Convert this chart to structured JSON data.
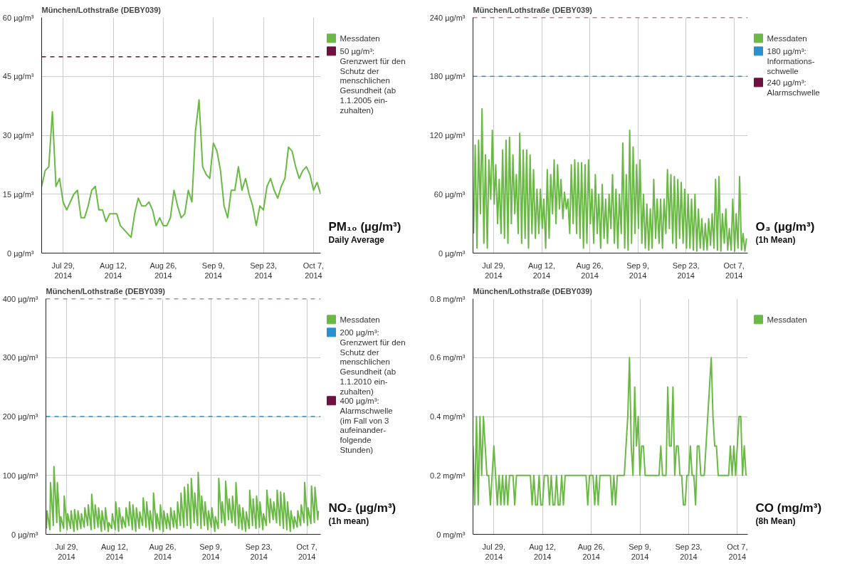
{
  "chart_data": [
    {
      "type": "line",
      "title": "München/Lothstraße (DEBY039)",
      "grid": true,
      "legend": "right",
      "line_style": "solid",
      "annotations": [
        "PM₁₀ (µg/m³)",
        "Daily Average"
      ],
      "xlim": [
        "2014-07-23",
        "2014-10-09"
      ],
      "xticks": [
        {
          "value": "2014-07-29",
          "label": "Jul 29,\n2014"
        },
        {
          "value": "2014-08-12",
          "label": "Aug 12,\n2014"
        },
        {
          "value": "2014-08-26",
          "label": "Aug 26,\n2014"
        },
        {
          "value": "2014-09-09",
          "label": "Sep 9,\n2014"
        },
        {
          "value": "2014-09-23",
          "label": "Sep 23,\n2014"
        },
        {
          "value": "2014-10-07",
          "label": "Oct 7,\n2014"
        }
      ],
      "ylim": [
        0,
        60
      ],
      "yticks": [
        {
          "value": 0,
          "label": "0 µg/m³"
        },
        {
          "value": 15,
          "label": "15 µg/m³"
        },
        {
          "value": 30,
          "label": "30 µg/m³"
        },
        {
          "value": 45,
          "label": "45 µg/m³"
        },
        {
          "value": 60,
          "label": "60 µg/m³"
        }
      ],
      "ref_lines": [
        {
          "axis": "y",
          "value": 50,
          "label": "50 µg/m³:\nGrenzwert für den\nSchutz der\nmenschlichen\nGesundheit (ab\n1.1.2005 ein-\nzuhalten)",
          "color": "#6e1040",
          "line_style": "dashed"
        }
      ],
      "x": [
        "2014-07-23",
        "2014-07-24",
        "2014-07-25",
        "2014-07-26",
        "2014-07-27",
        "2014-07-28",
        "2014-07-29",
        "2014-07-30",
        "2014-07-31",
        "2014-08-01",
        "2014-08-02",
        "2014-08-03",
        "2014-08-04",
        "2014-08-05",
        "2014-08-06",
        "2014-08-07",
        "2014-08-08",
        "2014-08-09",
        "2014-08-10",
        "2014-08-11",
        "2014-08-12",
        "2014-08-13",
        "2014-08-14",
        "2014-08-15",
        "2014-08-16",
        "2014-08-17",
        "2014-08-18",
        "2014-08-19",
        "2014-08-20",
        "2014-08-21",
        "2014-08-22",
        "2014-08-23",
        "2014-08-24",
        "2014-08-25",
        "2014-08-26",
        "2014-08-27",
        "2014-08-28",
        "2014-08-29",
        "2014-08-30",
        "2014-08-31",
        "2014-09-01",
        "2014-09-02",
        "2014-09-03",
        "2014-09-04",
        "2014-09-05",
        "2014-09-06",
        "2014-09-07",
        "2014-09-08",
        "2014-09-09",
        "2014-09-10",
        "2014-09-11",
        "2014-09-12",
        "2014-09-13",
        "2014-09-14",
        "2014-09-15",
        "2014-09-16",
        "2014-09-17",
        "2014-09-18",
        "2014-09-19",
        "2014-09-20",
        "2014-09-21",
        "2014-09-22",
        "2014-09-23",
        "2014-09-24",
        "2014-09-25",
        "2014-09-26",
        "2014-09-27",
        "2014-09-28",
        "2014-09-29",
        "2014-09-30",
        "2014-10-01",
        "2014-10-02",
        "2014-10-03",
        "2014-10-04",
        "2014-10-05",
        "2014-10-06",
        "2014-10-07",
        "2014-10-08",
        "2014-10-09"
      ],
      "series": [
        {
          "name": "Messdaten",
          "color": "#6ab945",
          "values": [
            17,
            21,
            22,
            36,
            17,
            19,
            13,
            11,
            13,
            15,
            16,
            9,
            9,
            12,
            16,
            17,
            11,
            11,
            8,
            10,
            10,
            10,
            7,
            6,
            5,
            4,
            10,
            14,
            12,
            12,
            13,
            11,
            7,
            9,
            7,
            7,
            9,
            16,
            12,
            9,
            10,
            16,
            13,
            31,
            39,
            22,
            20,
            19,
            28,
            26,
            21,
            12,
            9,
            16,
            16,
            22,
            16,
            19,
            15,
            12,
            7,
            12,
            11,
            17,
            19,
            16,
            14,
            17,
            19,
            27,
            26,
            22,
            19,
            21,
            22,
            20,
            16,
            18,
            15
          ]
        }
      ]
    },
    {
      "type": "line",
      "title": "München/Lothstraße (DEBY039)",
      "grid": true,
      "legend": "right",
      "line_style": "solid",
      "annotations": [
        "O₃ (µg/m³)",
        "(1h Mean)"
      ],
      "xlim": [
        "2014-07-23",
        "2014-10-11"
      ],
      "xticks": [
        {
          "value": "2014-07-29",
          "label": "Jul 29,\n2014"
        },
        {
          "value": "2014-08-12",
          "label": "Aug 12,\n2014"
        },
        {
          "value": "2014-08-26",
          "label": "Aug 26,\n2014"
        },
        {
          "value": "2014-09-09",
          "label": "Sep 9,\n2014"
        },
        {
          "value": "2014-09-23",
          "label": "Sep 23,\n2014"
        },
        {
          "value": "2014-10-07",
          "label": "Oct 7,\n2014"
        }
      ],
      "ylim": [
        0,
        240
      ],
      "yticks": [
        {
          "value": 0,
          "label": "0 µg/m³"
        },
        {
          "value": 60,
          "label": "60 µg/m³"
        },
        {
          "value": 120,
          "label": "120 µg/m³"
        },
        {
          "value": 180,
          "label": "180 µg/m³"
        },
        {
          "value": 240,
          "label": "240 µg/m³"
        }
      ],
      "ref_lines": [
        {
          "axis": "y",
          "value": 180,
          "label": "180 µg/m³:\nInformations-\nschwelle",
          "color": "#2a90d0",
          "line_style": "dashed"
        },
        {
          "axis": "y",
          "value": 240,
          "label": "240 µg/m³:\nAlarmschwelle",
          "color": "#6e1040",
          "line_style": "dashed"
        }
      ],
      "x": [
        "2014-07-23T04:00",
        "2014-07-23T15:00",
        "2014-07-24T04:00",
        "2014-07-24T15:00",
        "2014-07-25T04:00",
        "2014-07-25T15:00",
        "2014-07-26T04:00",
        "2014-07-26T15:00",
        "2014-07-27T04:00",
        "2014-07-27T15:00",
        "2014-07-28T04:00",
        "2014-07-28T15:00",
        "2014-07-29T04:00",
        "2014-07-29T15:00",
        "2014-07-30T04:00",
        "2014-07-30T15:00",
        "2014-07-31T04:00",
        "2014-07-31T15:00",
        "2014-08-01T04:00",
        "2014-08-01T15:00",
        "2014-08-02T04:00",
        "2014-08-02T15:00",
        "2014-08-03T04:00",
        "2014-08-03T15:00",
        "2014-08-04T04:00",
        "2014-08-04T15:00",
        "2014-08-05T04:00",
        "2014-08-05T15:00",
        "2014-08-06T04:00",
        "2014-08-06T15:00",
        "2014-08-07T04:00",
        "2014-08-07T15:00",
        "2014-08-08T04:00",
        "2014-08-08T15:00",
        "2014-08-09T04:00",
        "2014-08-09T15:00",
        "2014-08-10T04:00",
        "2014-08-10T15:00",
        "2014-08-11T04:00",
        "2014-08-11T15:00",
        "2014-08-12T04:00",
        "2014-08-12T15:00",
        "2014-08-13T04:00",
        "2014-08-13T15:00",
        "2014-08-14T04:00",
        "2014-08-14T15:00",
        "2014-08-15T04:00",
        "2014-08-15T15:00",
        "2014-08-16T04:00",
        "2014-08-16T15:00",
        "2014-08-17T04:00",
        "2014-08-17T15:00",
        "2014-08-18T04:00",
        "2014-08-18T15:00",
        "2014-08-19T04:00",
        "2014-08-19T15:00",
        "2014-08-20T04:00",
        "2014-08-20T15:00",
        "2014-08-21T04:00",
        "2014-08-21T15:00",
        "2014-08-22T04:00",
        "2014-08-22T15:00",
        "2014-08-23T04:00",
        "2014-08-23T15:00",
        "2014-08-24T04:00",
        "2014-08-24T15:00",
        "2014-08-25T04:00",
        "2014-08-25T15:00",
        "2014-08-26T04:00",
        "2014-08-26T15:00",
        "2014-08-27T04:00",
        "2014-08-27T15:00",
        "2014-08-28T04:00",
        "2014-08-28T15:00",
        "2014-08-29T04:00",
        "2014-08-29T15:00",
        "2014-08-30T04:00",
        "2014-08-30T15:00",
        "2014-08-31T04:00",
        "2014-08-31T15:00",
        "2014-09-01T04:00",
        "2014-09-01T15:00",
        "2014-09-02T04:00",
        "2014-09-02T15:00",
        "2014-09-03T04:00",
        "2014-09-03T15:00",
        "2014-09-04T04:00",
        "2014-09-04T15:00",
        "2014-09-05T04:00",
        "2014-09-05T15:00",
        "2014-09-06T04:00",
        "2014-09-06T15:00",
        "2014-09-07T04:00",
        "2014-09-07T15:00",
        "2014-09-08T04:00",
        "2014-09-08T15:00",
        "2014-09-09T04:00",
        "2014-09-09T15:00",
        "2014-09-10T04:00",
        "2014-09-10T15:00",
        "2014-09-11T04:00",
        "2014-09-11T15:00",
        "2014-09-12T04:00",
        "2014-09-12T15:00",
        "2014-09-13T04:00",
        "2014-09-13T15:00",
        "2014-09-14T04:00",
        "2014-09-14T15:00",
        "2014-09-15T04:00",
        "2014-09-15T15:00",
        "2014-09-16T04:00",
        "2014-09-16T15:00",
        "2014-09-17T04:00",
        "2014-09-17T15:00",
        "2014-09-18T04:00",
        "2014-09-18T15:00",
        "2014-09-19T04:00",
        "2014-09-19T15:00",
        "2014-09-20T04:00",
        "2014-09-20T15:00",
        "2014-09-21T04:00",
        "2014-09-21T15:00",
        "2014-09-22T04:00",
        "2014-09-22T15:00",
        "2014-09-23T04:00",
        "2014-09-23T15:00",
        "2014-09-24T04:00",
        "2014-09-24T15:00",
        "2014-09-25T04:00",
        "2014-09-25T15:00",
        "2014-09-26T04:00",
        "2014-09-26T15:00",
        "2014-09-27T04:00",
        "2014-09-27T15:00",
        "2014-09-28T04:00",
        "2014-09-28T15:00",
        "2014-09-29T04:00",
        "2014-09-29T15:00",
        "2014-09-30T04:00",
        "2014-09-30T15:00",
        "2014-10-01T04:00",
        "2014-10-01T15:00",
        "2014-10-02T04:00",
        "2014-10-02T15:00",
        "2014-10-03T04:00",
        "2014-10-03T15:00",
        "2014-10-04T04:00",
        "2014-10-04T15:00",
        "2014-10-05T04:00",
        "2014-10-05T15:00",
        "2014-10-06T04:00",
        "2014-10-06T15:00",
        "2014-10-07T04:00",
        "2014-10-07T15:00",
        "2014-10-08T04:00",
        "2014-10-08T15:00",
        "2014-10-09T04:00",
        "2014-10-09T15:00",
        "2014-10-10T04:00",
        "2014-10-10T15:00"
      ],
      "series": [
        {
          "name": "Messdaten",
          "color": "#6ab945",
          "values": [
            20,
            110,
            5,
            115,
            40,
            147,
            10,
            100,
            5,
            95,
            55,
            125,
            50,
            90,
            30,
            75,
            20,
            105,
            15,
            115,
            10,
            118,
            30,
            100,
            40,
            80,
            20,
            122,
            10,
            105,
            15,
            105,
            5,
            100,
            20,
            85,
            15,
            65,
            20,
            65,
            25,
            55,
            5,
            85,
            15,
            80,
            40,
            95,
            30,
            90,
            45,
            75,
            35,
            62,
            45,
            55,
            20,
            90,
            30,
            95,
            20,
            92,
            15,
            92,
            5,
            90,
            10,
            95,
            30,
            65,
            10,
            80,
            20,
            60,
            5,
            70,
            15,
            55,
            10,
            60,
            25,
            80,
            10,
            65,
            5,
            60,
            20,
            112,
            5,
            80,
            3,
            125,
            10,
            108,
            20,
            90,
            25,
            95,
            10,
            60,
            5,
            50,
            3,
            45,
            5,
            75,
            15,
            55,
            10,
            55,
            5,
            55,
            20,
            85,
            25,
            80,
            10,
            78,
            5,
            75,
            15,
            72,
            10,
            65,
            5,
            60,
            5,
            55,
            3,
            60,
            2,
            45,
            5,
            35,
            3,
            30,
            3,
            35,
            8,
            40,
            5,
            75,
            3,
            78,
            2,
            40,
            10,
            45,
            3,
            25,
            3,
            55,
            2,
            40,
            5,
            78,
            3,
            20,
            2,
            15
          ]
        }
      ]
    },
    {
      "type": "line",
      "title": "München/Lothstraße (DEBY039)",
      "grid": true,
      "legend": "right",
      "line_style": "solid",
      "annotations": [
        "NO₂ (µg/m³)",
        "(1h mean)"
      ],
      "xlim": [
        "2014-07-23",
        "2014-10-11"
      ],
      "xticks": [
        {
          "value": "2014-07-29",
          "label": "Jul 29,\n2014"
        },
        {
          "value": "2014-08-12",
          "label": "Aug 12,\n2014"
        },
        {
          "value": "2014-08-26",
          "label": "Aug 26,\n2014"
        },
        {
          "value": "2014-09-09",
          "label": "Sep 9,\n2014"
        },
        {
          "value": "2014-09-23",
          "label": "Sep 23,\n2014"
        },
        {
          "value": "2014-10-07",
          "label": "Oct 7,\n2014"
        }
      ],
      "ylim": [
        0,
        400
      ],
      "yticks": [
        {
          "value": 0,
          "label": "0 µg/m³"
        },
        {
          "value": 100,
          "label": "100 µg/m³"
        },
        {
          "value": 200,
          "label": "200 µg/m³"
        },
        {
          "value": 300,
          "label": "300 µg/m³"
        },
        {
          "value": 400,
          "label": "400 µg/m³"
        }
      ],
      "ref_lines": [
        {
          "axis": "y",
          "value": 200,
          "label": "200 µg/m³:\nGrenzwert für den\nSchutz der\nmenschlichen\nGesundheit (ab\n1.1.2010 ein-\nzuhalten)",
          "color": "#2a90d0",
          "line_style": "dashed"
        },
        {
          "axis": "y",
          "value": 400,
          "label": "400 µg/m³:\nAlarmschwelle\n(im Fall von 3\naufeinander-\nfolgende\nStunden)",
          "color": "#6e1040",
          "line_style": "dashed"
        }
      ],
      "x": [
        "2014-07-23T04:00",
        "2014-07-23T08:00",
        "2014-07-24T04:00",
        "2014-07-24T08:00",
        "2014-07-25T04:00",
        "2014-07-25T08:00",
        "2014-07-26T04:00",
        "2014-07-26T08:00",
        "2014-07-27T04:00",
        "2014-07-27T08:00",
        "2014-07-28T04:00",
        "2014-07-28T08:00",
        "2014-07-29T04:00",
        "2014-07-29T08:00",
        "2014-07-30T04:00",
        "2014-07-30T08:00",
        "2014-07-31T04:00",
        "2014-07-31T08:00",
        "2014-08-01T04:00",
        "2014-08-01T08:00",
        "2014-08-02T04:00",
        "2014-08-02T08:00",
        "2014-08-03T04:00",
        "2014-08-03T08:00",
        "2014-08-04T04:00",
        "2014-08-04T08:00",
        "2014-08-05T04:00",
        "2014-08-05T08:00",
        "2014-08-06T04:00",
        "2014-08-06T08:00",
        "2014-08-07T04:00",
        "2014-08-07T08:00",
        "2014-08-08T04:00",
        "2014-08-08T08:00",
        "2014-08-09T04:00",
        "2014-08-09T08:00",
        "2014-08-10T04:00",
        "2014-08-10T08:00",
        "2014-08-11T04:00",
        "2014-08-11T08:00",
        "2014-08-12T04:00",
        "2014-08-12T08:00",
        "2014-08-13T04:00",
        "2014-08-13T08:00",
        "2014-08-14T04:00",
        "2014-08-14T08:00",
        "2014-08-15T04:00",
        "2014-08-15T08:00",
        "2014-08-16T04:00",
        "2014-08-16T08:00",
        "2014-08-17T04:00",
        "2014-08-17T08:00",
        "2014-08-18T04:00",
        "2014-08-18T08:00",
        "2014-08-19T04:00",
        "2014-08-19T08:00",
        "2014-08-20T04:00",
        "2014-08-20T08:00",
        "2014-08-21T04:00",
        "2014-08-21T08:00",
        "2014-08-22T04:00",
        "2014-08-22T08:00",
        "2014-08-23T04:00",
        "2014-08-23T08:00",
        "2014-08-24T04:00",
        "2014-08-24T08:00",
        "2014-08-25T04:00",
        "2014-08-25T08:00",
        "2014-08-26T04:00",
        "2014-08-26T08:00",
        "2014-08-27T04:00",
        "2014-08-27T08:00",
        "2014-08-28T04:00",
        "2014-08-28T08:00",
        "2014-08-29T04:00",
        "2014-08-29T08:00",
        "2014-08-30T04:00",
        "2014-08-30T08:00",
        "2014-08-31T04:00",
        "2014-08-31T08:00",
        "2014-09-01T04:00",
        "2014-09-01T08:00",
        "2014-09-02T04:00",
        "2014-09-02T08:00",
        "2014-09-03T04:00",
        "2014-09-03T08:00",
        "2014-09-04T04:00",
        "2014-09-04T08:00",
        "2014-09-05T04:00",
        "2014-09-05T08:00",
        "2014-09-06T04:00",
        "2014-09-06T08:00",
        "2014-09-07T04:00",
        "2014-09-07T08:00",
        "2014-09-08T04:00",
        "2014-09-08T08:00",
        "2014-09-09T04:00",
        "2014-09-09T08:00",
        "2014-09-10T04:00",
        "2014-09-10T08:00",
        "2014-09-11T04:00",
        "2014-09-11T08:00",
        "2014-09-12T04:00",
        "2014-09-12T08:00",
        "2014-09-13T04:00",
        "2014-09-13T08:00",
        "2014-09-14T04:00",
        "2014-09-14T08:00",
        "2014-09-15T04:00",
        "2014-09-15T08:00",
        "2014-09-16T04:00",
        "2014-09-16T08:00",
        "2014-09-17T04:00",
        "2014-09-17T08:00",
        "2014-09-18T04:00",
        "2014-09-18T08:00",
        "2014-09-19T04:00",
        "2014-09-19T08:00",
        "2014-09-20T04:00",
        "2014-09-20T08:00",
        "2014-09-21T04:00",
        "2014-09-21T08:00",
        "2014-09-22T04:00",
        "2014-09-22T08:00",
        "2014-09-23T04:00",
        "2014-09-23T08:00",
        "2014-09-24T04:00",
        "2014-09-24T08:00",
        "2014-09-25T04:00",
        "2014-09-25T08:00",
        "2014-09-26T04:00",
        "2014-09-26T08:00",
        "2014-09-27T04:00",
        "2014-09-27T08:00",
        "2014-09-28T04:00",
        "2014-09-28T08:00",
        "2014-09-29T04:00",
        "2014-09-29T08:00",
        "2014-09-30T04:00",
        "2014-09-30T08:00",
        "2014-10-01T04:00",
        "2014-10-01T08:00",
        "2014-10-02T04:00",
        "2014-10-02T08:00",
        "2014-10-03T04:00",
        "2014-10-03T08:00",
        "2014-10-04T04:00",
        "2014-10-04T08:00",
        "2014-10-05T04:00",
        "2014-10-05T08:00",
        "2014-10-06T04:00",
        "2014-10-06T08:00",
        "2014-10-07T04:00",
        "2014-10-07T08:00",
        "2014-10-08T04:00",
        "2014-10-08T08:00",
        "2014-10-09T04:00",
        "2014-10-09T08:00",
        "2014-10-10T04:00",
        "2014-10-10T08:00"
      ],
      "series": [
        {
          "name": "Messdaten",
          "color": "#6ab945",
          "values": [
            10,
            40,
            8,
            88,
            15,
            115,
            20,
            88,
            5,
            30,
            10,
            65,
            8,
            35,
            10,
            40,
            5,
            42,
            8,
            40,
            10,
            35,
            12,
            45,
            15,
            50,
            8,
            68,
            10,
            50,
            12,
            45,
            5,
            40,
            8,
            45,
            5,
            20,
            10,
            35,
            8,
            55,
            5,
            45,
            10,
            30,
            12,
            45,
            15,
            55,
            8,
            50,
            5,
            45,
            10,
            38,
            15,
            62,
            12,
            55,
            8,
            40,
            5,
            70,
            10,
            35,
            8,
            50,
            5,
            40,
            10,
            35,
            8,
            45,
            12,
            40,
            10,
            55,
            15,
            70,
            12,
            80,
            15,
            85,
            10,
            95,
            20,
            70,
            15,
            105,
            10,
            65,
            15,
            55,
            8,
            40,
            12,
            45,
            5,
            30,
            10,
            95,
            20,
            55,
            15,
            90,
            25,
            60,
            20,
            65,
            15,
            88,
            10,
            50,
            8,
            45,
            5,
            38,
            10,
            75,
            15,
            60,
            10,
            65,
            12,
            55,
            8,
            35,
            15,
            75,
            20,
            60,
            25,
            55,
            20,
            75,
            15,
            72,
            10,
            70,
            8,
            55,
            5,
            40,
            10,
            30,
            12,
            40,
            15,
            50,
            20,
            88,
            15,
            45,
            18,
            82,
            20,
            80,
            25,
            40
          ]
        }
      ]
    },
    {
      "type": "line",
      "title": "München/Lothstraße (DEBY039)",
      "grid": true,
      "legend": "right",
      "line_style": "solid",
      "annotations": [
        "CO (mg/m³)",
        "(8h Mean)"
      ],
      "xlim": [
        "2014-07-23",
        "2014-10-10"
      ],
      "xticks": [
        {
          "value": "2014-07-29",
          "label": "Jul 29,\n2014"
        },
        {
          "value": "2014-08-12",
          "label": "Aug 12,\n2014"
        },
        {
          "value": "2014-08-26",
          "label": "Aug 26,\n2014"
        },
        {
          "value": "2014-09-09",
          "label": "Sep 9,\n2014"
        },
        {
          "value": "2014-09-23",
          "label": "Sep 23,\n2014"
        },
        {
          "value": "2014-10-07",
          "label": "Oct 7,\n2014"
        }
      ],
      "ylim": [
        0,
        0.8
      ],
      "yticks": [
        {
          "value": 0,
          "label": "0 mg/m³"
        },
        {
          "value": 0.2,
          "label": "0.2 mg/m³"
        },
        {
          "value": 0.4,
          "label": "0.4 mg/m³"
        },
        {
          "value": 0.6,
          "label": "0.6 mg/m³"
        },
        {
          "value": 0.8,
          "label": "0.8 mg/m³"
        }
      ],
      "x": [
        "2014-07-23T00:00",
        "2014-07-23T12:00",
        "2014-07-24T00:00",
        "2014-07-24T12:00",
        "2014-07-25T00:00",
        "2014-07-25T12:00",
        "2014-07-26T00:00",
        "2014-07-26T12:00",
        "2014-07-27T00:00",
        "2014-07-27T12:00",
        "2014-07-28T00:00",
        "2014-07-28T12:00",
        "2014-07-29T00:00",
        "2014-07-29T12:00",
        "2014-07-30T00:00",
        "2014-07-30T12:00",
        "2014-07-31T00:00",
        "2014-07-31T12:00",
        "2014-08-01T00:00",
        "2014-08-01T12:00",
        "2014-08-02T00:00",
        "2014-08-02T12:00",
        "2014-08-03T00:00",
        "2014-08-03T12:00",
        "2014-08-04T00:00",
        "2014-08-04T12:00",
        "2014-08-05T00:00",
        "2014-08-05T12:00",
        "2014-08-06T00:00",
        "2014-08-06T12:00",
        "2014-08-07T00:00",
        "2014-08-07T12:00",
        "2014-08-08T00:00",
        "2014-08-08T12:00",
        "2014-08-09T00:00",
        "2014-08-09T12:00",
        "2014-08-10T00:00",
        "2014-08-10T12:00",
        "2014-08-11T00:00",
        "2014-08-11T12:00",
        "2014-08-12T00:00",
        "2014-08-12T12:00",
        "2014-08-13T00:00",
        "2014-08-13T12:00",
        "2014-08-14T00:00",
        "2014-08-14T12:00",
        "2014-08-15T00:00",
        "2014-08-15T12:00",
        "2014-08-16T00:00",
        "2014-08-16T12:00",
        "2014-08-17T00:00",
        "2014-08-17T12:00",
        "2014-08-18T00:00",
        "2014-08-18T12:00",
        "2014-08-19T00:00",
        "2014-08-19T12:00",
        "2014-08-20T00:00",
        "2014-08-20T12:00",
        "2014-08-21T00:00",
        "2014-08-21T12:00",
        "2014-08-22T00:00",
        "2014-08-22T12:00",
        "2014-08-23T00:00",
        "2014-08-23T12:00",
        "2014-08-24T00:00",
        "2014-08-24T12:00",
        "2014-08-25T00:00",
        "2014-08-25T12:00",
        "2014-08-26T00:00",
        "2014-08-26T12:00",
        "2014-08-27T00:00",
        "2014-08-27T12:00",
        "2014-08-28T00:00",
        "2014-08-28T12:00",
        "2014-08-29T00:00",
        "2014-08-29T12:00",
        "2014-08-30T00:00",
        "2014-08-30T12:00",
        "2014-08-31T00:00",
        "2014-08-31T12:00",
        "2014-09-01T00:00",
        "2014-09-01T12:00",
        "2014-09-02T00:00",
        "2014-09-02T12:00",
        "2014-09-03T00:00",
        "2014-09-03T12:00",
        "2014-09-04T00:00",
        "2014-09-04T12:00",
        "2014-09-05T00:00",
        "2014-09-05T12:00",
        "2014-09-06T00:00",
        "2014-09-06T12:00",
        "2014-09-07T00:00",
        "2014-09-07T12:00",
        "2014-09-08T00:00",
        "2014-09-08T12:00",
        "2014-09-09T00:00",
        "2014-09-09T12:00",
        "2014-09-10T00:00",
        "2014-09-10T12:00",
        "2014-09-11T00:00",
        "2014-09-11T12:00",
        "2014-09-12T00:00",
        "2014-09-12T12:00",
        "2014-09-13T00:00",
        "2014-09-13T12:00",
        "2014-09-14T00:00",
        "2014-09-14T12:00",
        "2014-09-15T00:00",
        "2014-09-15T12:00",
        "2014-09-16T00:00",
        "2014-09-16T12:00",
        "2014-09-17T00:00",
        "2014-09-17T12:00",
        "2014-09-18T00:00",
        "2014-09-18T12:00",
        "2014-09-19T00:00",
        "2014-09-19T12:00",
        "2014-09-20T00:00",
        "2014-09-20T12:00",
        "2014-09-21T00:00",
        "2014-09-21T12:00",
        "2014-09-22T00:00",
        "2014-09-22T12:00",
        "2014-09-23T00:00",
        "2014-09-23T12:00",
        "2014-09-24T00:00",
        "2014-09-24T12:00",
        "2014-09-25T00:00",
        "2014-09-25T12:00",
        "2014-09-26T00:00",
        "2014-09-26T12:00",
        "2014-09-27T00:00",
        "2014-09-27T12:00",
        "2014-09-28T00:00",
        "2014-09-28T12:00",
        "2014-09-29T00:00",
        "2014-09-29T12:00",
        "2014-09-30T00:00",
        "2014-09-30T12:00",
        "2014-10-01T00:00",
        "2014-10-01T12:00",
        "2014-10-02T00:00",
        "2014-10-02T12:00",
        "2014-10-03T00:00",
        "2014-10-03T12:00",
        "2014-10-04T00:00",
        "2014-10-04T12:00",
        "2014-10-05T00:00",
        "2014-10-05T12:00",
        "2014-10-06T00:00",
        "2014-10-06T12:00",
        "2014-10-07T00:00",
        "2014-10-07T12:00",
        "2014-10-08T00:00",
        "2014-10-08T12:00",
        "2014-10-09T00:00",
        "2014-10-09T12:00"
      ],
      "series": [
        {
          "name": "Messdaten",
          "color": "#6ab945",
          "values": [
            0.3,
            0.1,
            0.4,
            0.1,
            0.4,
            0.2,
            0.4,
            0.3,
            0.2,
            0.2,
            0.1,
            0.2,
            0.3,
            0.2,
            0.1,
            0.2,
            0.1,
            0.2,
            0.1,
            0.2,
            0.1,
            0.2,
            0.2,
            0.2,
            0.1,
            0.2,
            0.2,
            0.2,
            0.2,
            0.2,
            0.2,
            0.2,
            0.2,
            0.2,
            0.1,
            0.2,
            0.1,
            0.1,
            0.2,
            0.1,
            0.1,
            0.2,
            0.2,
            0.2,
            0.1,
            0.2,
            0.1,
            0.1,
            0.2,
            0.1,
            0.1,
            0.2,
            0.1,
            0.2,
            0.2,
            0.2,
            0.2,
            0.2,
            0.2,
            0.2,
            0.2,
            0.2,
            0.2,
            0.2,
            0.2,
            0.2,
            0.1,
            0.2,
            0.2,
            0.2,
            0.1,
            0.2,
            0.1,
            0.2,
            0.2,
            0.2,
            0.2,
            0.2,
            0.2,
            0.2,
            0.1,
            0.2,
            0.1,
            0.2,
            0.2,
            0.2,
            0.2,
            0.2,
            0.3,
            0.4,
            0.6,
            0.3,
            0.2,
            0.5,
            0.3,
            0.4,
            0.2,
            0.3,
            0.3,
            0.2,
            0.2,
            0.2,
            0.2,
            0.2,
            0.2,
            0.2,
            0.2,
            0.2,
            0.3,
            0.2,
            0.2,
            0.2,
            0.5,
            0.3,
            0.3,
            0.5,
            0.2,
            0.3,
            0.3,
            0.2,
            0.2,
            0.1,
            0.1,
            0.2,
            0.2,
            0.3,
            0.2,
            0.2,
            0.1,
            0.3,
            0.3,
            0.2,
            0.2,
            0.2,
            0.3,
            0.4,
            0.5,
            0.6,
            0.4,
            0.3,
            0.3,
            0.2,
            0.2,
            0.2,
            0.2,
            0.2,
            0.2,
            0.2,
            0.3,
            0.2,
            0.3,
            0.2,
            0.3,
            0.4,
            0.4,
            0.2,
            0.3,
            0.2
          ]
        }
      ]
    }
  ]
}
